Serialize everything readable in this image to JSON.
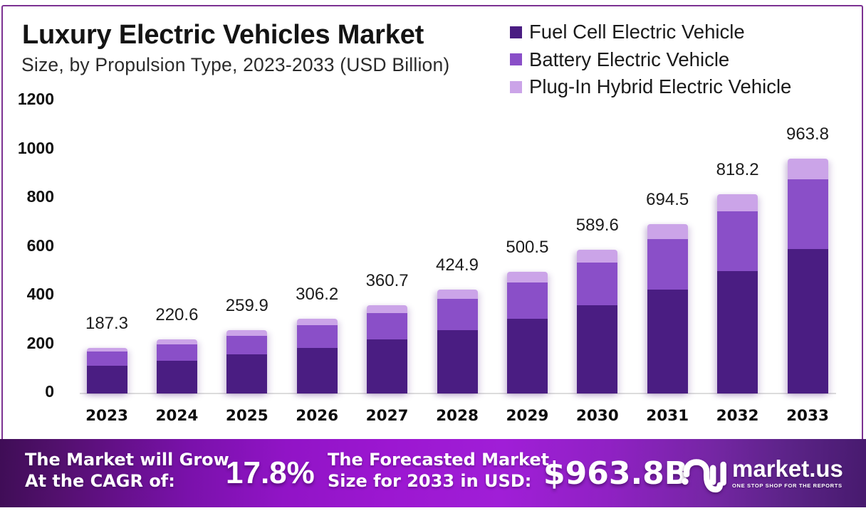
{
  "header": {
    "title": "Luxury Electric Vehicles Market",
    "subtitle": "Size, by Propulsion Type, 2023-2033 (USD Billion)"
  },
  "legend": [
    {
      "label": "Fuel Cell Electric Vehicle",
      "color": "#4a1d82"
    },
    {
      "label": "Battery Electric Vehicle",
      "color": "#8a4fc8"
    },
    {
      "label": "Plug-In Hybrid Electric Vehicle",
      "color": "#cba4e8"
    }
  ],
  "chart_data": {
    "type": "bar",
    "stacked": true,
    "title": "Luxury Electric Vehicles Market",
    "subtitle": "Size, by Propulsion Type, 2023-2033 (USD Billion)",
    "categories": [
      "2023",
      "2024",
      "2025",
      "2026",
      "2027",
      "2028",
      "2029",
      "2030",
      "2031",
      "2032",
      "2033"
    ],
    "totals": [
      187.3,
      220.6,
      259.9,
      306.2,
      360.7,
      424.9,
      500.5,
      589.6,
      694.5,
      818.2,
      963.8
    ],
    "total_labels": [
      "187.3",
      "220.6",
      "259.9",
      "306.2",
      "360.7",
      "424.9",
      "500.5",
      "589.6",
      "694.5",
      "818.2",
      "963.8"
    ],
    "series": [
      {
        "name": "Fuel Cell Electric Vehicle",
        "color": "#4a1d82",
        "values": [
          115.2,
          135.7,
          159.8,
          188.3,
          221.8,
          261.3,
          307.8,
          362.6,
          427.1,
          503.2,
          592.7
        ]
      },
      {
        "name": "Battery Electric Vehicle",
        "color": "#8a4fc8",
        "values": [
          55.8,
          65.7,
          77.5,
          91.2,
          107.5,
          126.6,
          149.1,
          175.7,
          207.0,
          243.8,
          287.2
        ]
      },
      {
        "name": "Plug-In Hybrid Electric Vehicle",
        "color": "#cba4e8",
        "values": [
          16.3,
          19.2,
          22.6,
          26.7,
          31.4,
          37.0,
          43.6,
          51.3,
          60.4,
          71.2,
          83.9
        ]
      }
    ],
    "xlabel": "",
    "ylabel": "",
    "y_ticks": [
      0,
      200,
      400,
      600,
      800,
      1000,
      1200
    ],
    "ylim": [
      0,
      1200
    ],
    "grid": false,
    "legend_position": "top-right"
  },
  "footer": {
    "cagr_label_line1": "The Market will Grow",
    "cagr_label_line2": "At the CAGR of:",
    "cagr_value": "17.8%",
    "forecast_label_line1": "The Forecasted Market",
    "forecast_label_line2": "Size for 2033 in USD:",
    "forecast_value": "$963.8B",
    "brand_name": "market.us",
    "brand_tagline": "ONE STOP SHOP FOR THE REPORTS"
  },
  "colors": {
    "border": "#7c3292",
    "background": "#ffffff",
    "fuel_cell": "#4a1d82",
    "battery": "#8a4fc8",
    "plug_in_hybrid": "#cba4e8",
    "footer_gradient_left": "#43105e",
    "footer_gradient_mid": "#9d1ad2",
    "footer_gradient_right": "#461a6d"
  }
}
